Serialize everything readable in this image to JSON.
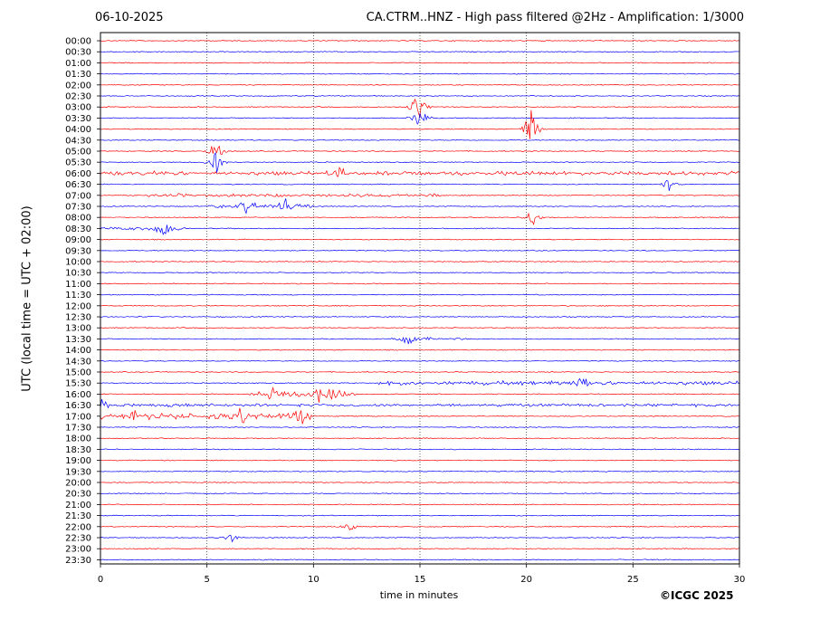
{
  "header": {
    "date": "06-10-2025",
    "title": "CA.CTRM..HNZ - High pass filtered @2Hz - Amplification: 1/3000"
  },
  "footer": {
    "copyright": "©ICGC 2025"
  },
  "chart_data": {
    "type": "line",
    "title": "CA.CTRM..HNZ - High pass filtered @2Hz - Amplification: 1/3000",
    "xlabel": "time in minutes",
    "ylabel": "UTC (local time = UTC + 02:00)",
    "xlim": [
      0,
      30
    ],
    "xticks": [
      0,
      5,
      10,
      15,
      20,
      25,
      30
    ],
    "vertical_gridlines": [
      5,
      10,
      15,
      20,
      25
    ],
    "grid": "dotted vertical",
    "row_labels": [
      "00:00",
      "00:30",
      "01:00",
      "01:30",
      "02:00",
      "02:30",
      "03:00",
      "03:30",
      "04:00",
      "04:30",
      "05:00",
      "05:30",
      "06:00",
      "06:30",
      "07:00",
      "07:30",
      "08:00",
      "08:30",
      "09:00",
      "09:30",
      "10:00",
      "10:30",
      "11:00",
      "11:30",
      "12:00",
      "12:30",
      "13:00",
      "13:30",
      "14:00",
      "14:30",
      "15:00",
      "15:30",
      "16:00",
      "16:30",
      "17:00",
      "17:30",
      "18:00",
      "18:30",
      "19:00",
      "19:30",
      "20:00",
      "20:30",
      "21:00",
      "21:30",
      "22:00",
      "22:30",
      "23:00",
      "23:30"
    ],
    "colors": {
      "even_rows": "#ff0000",
      "odd_rows": "#0000ff"
    },
    "events": [
      {
        "row": 6,
        "minute": 14.9,
        "amp": 1.0
      },
      {
        "row": 7,
        "minute": 15.0,
        "amp": 0.6
      },
      {
        "row": 8,
        "minute": 20.2,
        "amp": 0.9
      },
      {
        "row": 10,
        "minute": 5.4,
        "amp": 0.6
      },
      {
        "row": 11,
        "minute": 5.4,
        "amp": 0.7
      },
      {
        "row": 12,
        "minute": 11.2,
        "amp": 0.45
      },
      {
        "row": 13,
        "minute": 26.7,
        "amp": 0.4
      },
      {
        "row": 15,
        "minute": 6.9,
        "amp": 0.4
      },
      {
        "row": 15,
        "minute": 8.7,
        "amp": 0.35
      },
      {
        "row": 16,
        "minute": 20.3,
        "amp": 0.45
      },
      {
        "row": 17,
        "minute": 3.0,
        "amp": 0.45
      },
      {
        "row": 27,
        "minute": 14.5,
        "amp": 0.3
      },
      {
        "row": 31,
        "minute": 22.7,
        "amp": 0.35
      },
      {
        "row": 32,
        "minute": 8.1,
        "amp": 0.5
      },
      {
        "row": 32,
        "minute": 10.3,
        "amp": 0.45
      },
      {
        "row": 32,
        "minute": 11.0,
        "amp": 0.35
      },
      {
        "row": 33,
        "minute": 0.1,
        "amp": 0.3
      },
      {
        "row": 34,
        "minute": 6.6,
        "amp": 0.45
      },
      {
        "row": 34,
        "minute": 9.5,
        "amp": 0.55
      },
      {
        "row": 34,
        "minute": 1.6,
        "amp": 0.35
      },
      {
        "row": 44,
        "minute": 11.7,
        "amp": 0.2
      },
      {
        "row": 45,
        "minute": 6.1,
        "amp": 0.25
      }
    ],
    "noisy_rows": [
      {
        "row": 12,
        "from": 0,
        "to": 30,
        "level": 0.18
      },
      {
        "row": 14,
        "from": 2,
        "to": 16,
        "level": 0.15
      },
      {
        "row": 15,
        "from": 5,
        "to": 10,
        "level": 0.2
      },
      {
        "row": 17,
        "from": 0,
        "to": 4,
        "level": 0.15
      },
      {
        "row": 27,
        "from": 13.5,
        "to": 17.2,
        "level": 0.13
      },
      {
        "row": 31,
        "from": 13,
        "to": 30,
        "level": 0.18
      },
      {
        "row": 32,
        "from": 7,
        "to": 12,
        "level": 0.25
      },
      {
        "row": 33,
        "from": 0,
        "to": 30,
        "level": 0.12
      },
      {
        "row": 34,
        "from": 0,
        "to": 10,
        "level": 0.3
      }
    ]
  }
}
